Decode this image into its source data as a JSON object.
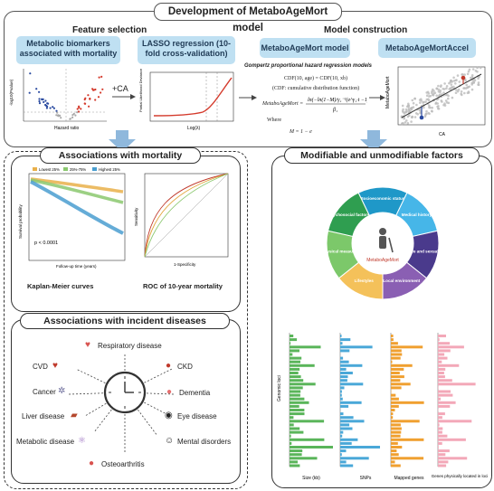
{
  "title": "Development of MetaboAgeMort model",
  "feature_selection": {
    "heading": "Feature selection",
    "box1": "Metabolic biomarkers associated with mortality",
    "box2": "LASSO regression (10-fold cross-validation)",
    "plus_ca": "+CA",
    "volcano_xlabel": "Hazard ratio",
    "volcano_ylabel": "-log10(Pvalue)",
    "lasso_xlabel": "Log(λ)",
    "lasso_ylabel": "Partial Likelihood Deviance"
  },
  "model_construction": {
    "heading": "Model construction",
    "box1": "MetaboAgeMort model",
    "box2": "MetaboAgeMortAccel",
    "gompertz_title": "Gompertz proportional hazard regression models",
    "eq1": "CDF(10, age) = CDF(10, xb)",
    "eq2": "(CDF: cumulative distribution function)",
    "eq3_lhs": "MetaboAgeMort =",
    "where": "Where",
    "eq4": "M = 1 − e",
    "scatter_xlabel": "CA",
    "scatter_ylabel": "MetaboAgeMort"
  },
  "assoc_mortality": {
    "header": "Associations with mortality",
    "legend": [
      "Lowest 25%",
      "25%-75%",
      "Highest 25%"
    ],
    "pvalue": "p < 0.0001",
    "km_ylabel": "Survival probability",
    "km_xlabel": "Follow-up time (years)",
    "km_caption": "Kaplan-Meier curves",
    "roc_ylabel": "Sensitivity",
    "roc_xlabel": "1-Specificity",
    "roc_caption": "ROC of 10-year mortality"
  },
  "assoc_incident": {
    "header": "Associations with incident diseases",
    "diseases": {
      "respiratory": "Respiratory disease",
      "cvd": "CVD",
      "ckd": "CKD",
      "cancer": "Cancer",
      "dementia": "Dementia",
      "liver": "Liver disease",
      "eye": "Eye disease",
      "metabolic": "Metabolic disease",
      "mental": "Mental disorders",
      "osteo": "Osteoarthritis"
    }
  },
  "modifiable": {
    "header": "Modifiable and unmodifiable factors",
    "center_label": "MetaboAgeMort",
    "wheel_segments": [
      {
        "label": "Socioeconomic status",
        "color": "#1f98c8"
      },
      {
        "label": "Medical history",
        "color": "#46b6e8"
      },
      {
        "label": "Early life and sexual health",
        "color": "#4a3a8c"
      },
      {
        "label": "Local environment",
        "color": "#8a5fb3"
      },
      {
        "label": "Lifestyles",
        "color": "#f4c15a"
      },
      {
        "label": "Physical measures",
        "color": "#7cc86a"
      },
      {
        "label": "Psychosocial factors",
        "color": "#2f9e50"
      }
    ],
    "genomic_axis_label": "Genomic loci",
    "bar_xlabels": [
      "Size (kb)",
      "SNPs",
      "Mapped genes",
      "Genes physically located in loci"
    ],
    "bar_colors": [
      "#5ab55a",
      "#4aa8d8",
      "#f0a030",
      "#f3a8b8"
    ]
  }
}
